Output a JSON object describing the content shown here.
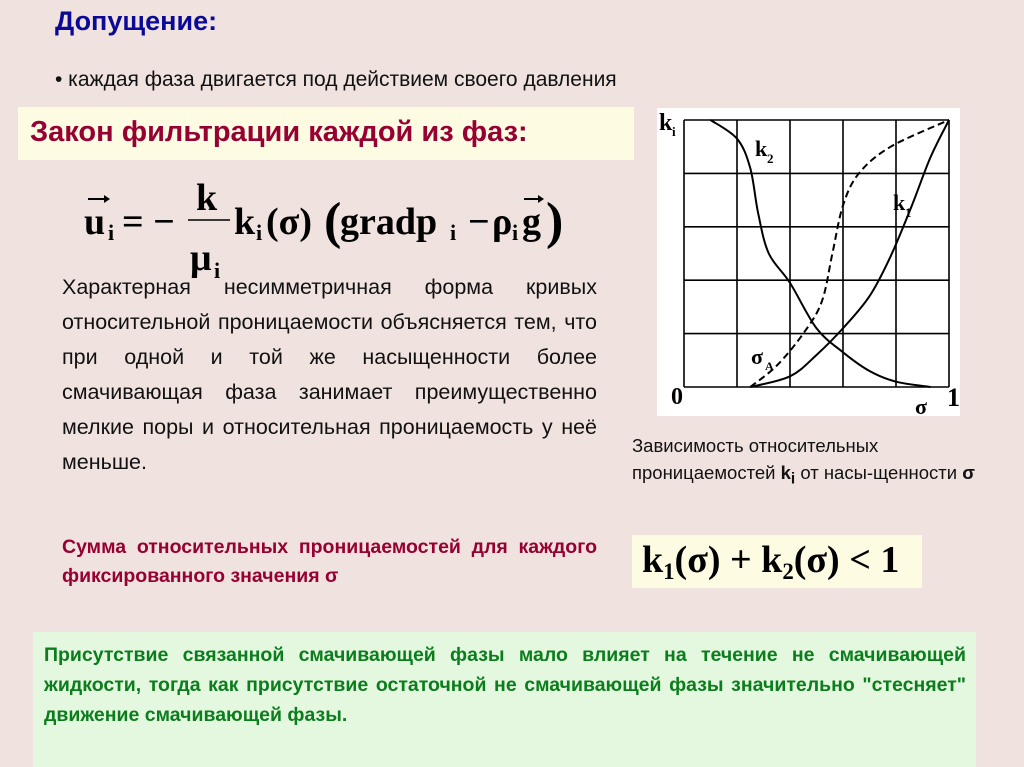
{
  "slide": {
    "title": "Допущение:",
    "bullet": "• каждая фаза двигается под действием своего давления",
    "law_heading": "Закон фильтрации каждой из фаз:",
    "formula": {
      "lhs": "u",
      "lhs_sub": "i",
      "equals_minus": "= −",
      "numerator": "k",
      "denominator": "μ",
      "denominator_sub": "i",
      "k": "k",
      "k_sub": "i",
      "arg": "(σ)",
      "paren_open": "(",
      "grad": "gradp",
      "grad_sub": "i",
      "minus": "−",
      "rho": "ρ",
      "rho_sub": "i",
      "g": "g",
      "paren_close": ")"
    },
    "paragraph": "Характерная несимметричная форма кривых относительной проницаемости объясняется тем, что при одной и той же насыщенности более смачивающая фаза занимает преимущественно мелкие поры и относительная проницаемость у неё меньше.",
    "sum_text": "Сумма относительных проницаемостей для каждого фиксированного значения σ",
    "caption_pre": "Зависимость относительных проницаемостей ",
    "caption_k": "k",
    "caption_k_sub": "i",
    "caption_post": " от насы-щенности ",
    "caption_sigma": "σ",
    "inequality": {
      "k1": "k",
      "k1_sub": "1",
      "mid": "(σ) + k",
      "k2_sub": "2",
      "end": "(σ) < 1"
    },
    "green_note": "Присутствие связанной смачивающей фазы мало влияет на течение не смачивающей жидкости, тогда как присутствие остаточной не смачивающей фазы значительно \"стесняет\" движение смачивающей фазы."
  },
  "figure": {
    "y_label": "k",
    "y_label_sub": "i",
    "x_label": "σ",
    "origin_label": "0",
    "x_end_label": "1",
    "grid": true,
    "grid_divisions": 5,
    "xlim": [
      0,
      1
    ],
    "ylim": [
      0,
      1
    ],
    "curves": [
      {
        "name": "k",
        "name_sub": "2",
        "style": "solid",
        "points": [
          [
            0.1,
            1
          ],
          [
            0.2,
            0.93
          ],
          [
            0.25,
            0.82
          ],
          [
            0.28,
            0.65
          ],
          [
            0.32,
            0.5
          ],
          [
            0.4,
            0.39
          ],
          [
            0.5,
            0.22
          ],
          [
            0.6,
            0.13
          ],
          [
            0.7,
            0.06
          ],
          [
            0.8,
            0.02
          ],
          [
            0.93,
            0
          ]
        ]
      },
      {
        "name": "k",
        "name_sub": "1",
        "style": "solid",
        "points": [
          [
            0.25,
            0
          ],
          [
            0.4,
            0.04
          ],
          [
            0.5,
            0.12
          ],
          [
            0.6,
            0.22
          ],
          [
            0.7,
            0.34
          ],
          [
            0.78,
            0.49
          ],
          [
            0.86,
            0.68
          ],
          [
            0.93,
            0.86
          ],
          [
            1,
            1
          ]
        ]
      },
      {
        "name": "",
        "style": "dashed",
        "points": [
          [
            0.25,
            0
          ],
          [
            0.35,
            0.08
          ],
          [
            0.45,
            0.2
          ],
          [
            0.52,
            0.32
          ],
          [
            0.56,
            0.5
          ],
          [
            0.6,
            0.68
          ],
          [
            0.66,
            0.8
          ],
          [
            0.78,
            0.9
          ],
          [
            1,
            1
          ]
        ]
      }
    ],
    "annotation": "σ",
    "annotation_sub": "A"
  }
}
